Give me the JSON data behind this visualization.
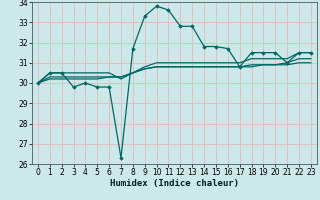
{
  "xlabel": "Humidex (Indice chaleur)",
  "ylabel": "",
  "xlim": [
    -0.5,
    23.5
  ],
  "ylim": [
    26,
    34
  ],
  "yticks": [
    26,
    27,
    28,
    29,
    30,
    31,
    32,
    33,
    34
  ],
  "xticks": [
    0,
    1,
    2,
    3,
    4,
    5,
    6,
    7,
    8,
    9,
    10,
    11,
    12,
    13,
    14,
    15,
    16,
    17,
    18,
    19,
    20,
    21,
    22,
    23
  ],
  "bg_color": "#cce8e8",
  "grid_color": "#e8b8b8",
  "line_color": "#006868",
  "series": [
    [
      30.0,
      30.5,
      30.5,
      29.8,
      30.0,
      29.8,
      29.8,
      26.3,
      31.7,
      33.3,
      33.8,
      33.6,
      32.8,
      32.8,
      31.8,
      31.8,
      31.7,
      30.8,
      31.5,
      31.5,
      31.5,
      31.0,
      31.5,
      31.5
    ],
    [
      30.0,
      30.5,
      30.5,
      30.5,
      30.5,
      30.5,
      30.5,
      30.2,
      30.5,
      30.8,
      31.0,
      31.0,
      31.0,
      31.0,
      31.0,
      31.0,
      31.0,
      31.0,
      31.2,
      31.2,
      31.2,
      31.2,
      31.5,
      31.5
    ],
    [
      30.0,
      30.2,
      30.2,
      30.2,
      30.2,
      30.2,
      30.3,
      30.3,
      30.5,
      30.7,
      30.8,
      30.8,
      30.8,
      30.8,
      30.8,
      30.8,
      30.8,
      30.8,
      30.8,
      30.9,
      30.9,
      30.9,
      31.0,
      31.0
    ],
    [
      30.0,
      30.3,
      30.3,
      30.3,
      30.3,
      30.3,
      30.3,
      30.3,
      30.5,
      30.7,
      30.8,
      30.8,
      30.8,
      30.8,
      30.8,
      30.8,
      30.8,
      30.8,
      30.9,
      30.9,
      30.9,
      31.0,
      31.2,
      31.2
    ]
  ],
  "marker_series": 0,
  "marker": "D",
  "marker_size": 1.8,
  "linewidth": 0.9,
  "tick_fontsize": 5.5,
  "xlabel_fontsize": 6.5,
  "xlabel_fontweight": "bold"
}
